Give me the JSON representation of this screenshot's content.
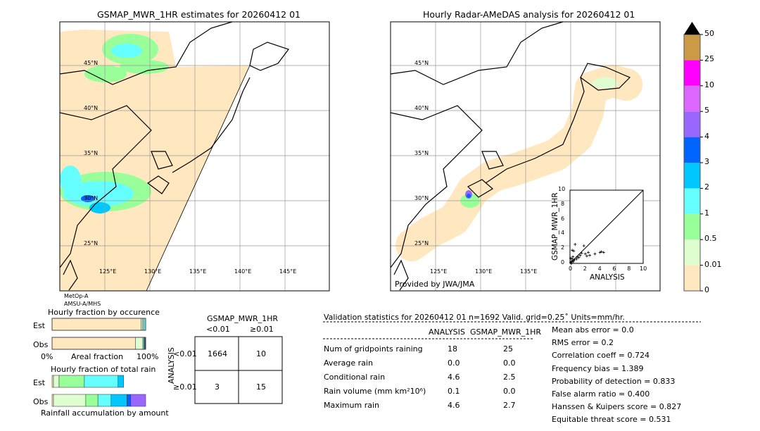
{
  "map_left": {
    "title": "GSMAP_MWR_1HR estimates for 20260412 01",
    "lon_labels": [
      "125°E",
      "130°E",
      "135°E",
      "140°E",
      "145°E"
    ],
    "lat_labels": [
      "45°N",
      "40°N",
      "35°N",
      "30°N",
      "25°N"
    ],
    "sensor_line1": "MetOp-A",
    "sensor_line2": "AMSU-A/MHS"
  },
  "map_right": {
    "title": "Hourly Radar-AMeDAS analysis for 20260412 01",
    "lon_labels": [
      "125°E",
      "130°E",
      "135°E"
    ],
    "lat_labels": [
      "45°N",
      "40°N",
      "35°N",
      "30°N",
      "25°N"
    ],
    "credit": "Provided by JWA/JMA"
  },
  "colorbar": {
    "labels": [
      "0",
      "0.01",
      "0.5",
      "1",
      "2",
      "3",
      "4",
      "5",
      "10",
      "25",
      "50"
    ],
    "colors": [
      "#ffe8c0",
      "#e0ffd0",
      "#99ff99",
      "#66ffff",
      "#00c8ff",
      "#0064ff",
      "#9966ff",
      "#dd66ff",
      "#ff00ff",
      "#cc9944"
    ],
    "extend": "max"
  },
  "chart_data": {
    "type": "scatter",
    "xlabel": "ANALYSIS",
    "ylabel": "GSMAP_MWR_1HR",
    "xlim": [
      0,
      10
    ],
    "ylim": [
      0,
      10
    ],
    "ticks": [
      "0",
      "2",
      "4",
      "6",
      "8",
      "10"
    ],
    "points": [
      [
        0.1,
        0.1
      ],
      [
        0.2,
        0.3
      ],
      [
        0.3,
        0.6
      ],
      [
        0.4,
        0.9
      ],
      [
        0.5,
        0.4
      ],
      [
        0.3,
        1.8
      ],
      [
        0.5,
        1.7
      ],
      [
        0.7,
        2.6
      ],
      [
        0.9,
        0.6
      ],
      [
        1.2,
        0.8
      ],
      [
        1.4,
        1.1
      ],
      [
        1.6,
        1.4
      ],
      [
        1.9,
        2.4
      ],
      [
        2.1,
        1.3
      ],
      [
        2.3,
        1.0
      ],
      [
        2.5,
        1.5
      ],
      [
        2.7,
        1.1
      ],
      [
        3.4,
        1.3
      ],
      [
        4.1,
        1.5
      ],
      [
        4.3,
        1.6
      ],
      [
        4.6,
        1.5
      ],
      [
        0.2,
        0.0
      ],
      [
        0.4,
        0.2
      ],
      [
        0.6,
        0.5
      ],
      [
        0.1,
        0.7
      ],
      [
        1.0,
        0.9
      ]
    ]
  },
  "occurrence": {
    "title": "Hourly fraction by occurence",
    "est_label": "Est",
    "obs_label": "Obs",
    "axis_left": "0%",
    "axis_mid": "Areal fraction",
    "axis_right": "100%",
    "est": [
      {
        "color": "#ffe8c0",
        "pct": 95
      },
      {
        "color": "#e0ffd0",
        "pct": 1.5
      },
      {
        "color": "#99ff99",
        "pct": 1.5
      },
      {
        "color": "#66ffff",
        "pct": 2
      }
    ],
    "obs": [
      {
        "color": "#ffe8c0",
        "pct": 89
      },
      {
        "color": "#e0ffd0",
        "pct": 8
      },
      {
        "color": "#99ff99",
        "pct": 1
      },
      {
        "color": "#00c8ff",
        "pct": 1
      },
      {
        "color": "#333333",
        "pct": 1
      }
    ]
  },
  "rain": {
    "title": "Hourly fraction of total rain",
    "est_label": "Est",
    "obs_label": "Obs",
    "footer": "Rainfall accumulation by amount",
    "est": [
      {
        "color": "#ffe8c0",
        "pct": 1.5
      },
      {
        "color": "#e0ffd0",
        "pct": 6
      },
      {
        "color": "#99ff99",
        "pct": 27
      },
      {
        "color": "#66ffff",
        "pct": 36
      },
      {
        "color": "#00c8ff",
        "pct": 6
      }
    ],
    "obs": [
      {
        "color": "#ffe8c0",
        "pct": 1.5
      },
      {
        "color": "#e0ffd0",
        "pct": 34.5
      },
      {
        "color": "#99ff99",
        "pct": 13
      },
      {
        "color": "#66ffff",
        "pct": 14
      },
      {
        "color": "#00c8ff",
        "pct": 17
      },
      {
        "color": "#0064ff",
        "pct": 4
      },
      {
        "color": "#9966ff",
        "pct": 16
      }
    ]
  },
  "contingency": {
    "title": "GSMAP_MWR_1HR",
    "col1": "<0.01",
    "col2": "≥0.01",
    "row_axis": "ANALYSIS",
    "row1": "<0.01",
    "row2": "≥0.01",
    "cells": [
      "1664",
      "10",
      "3",
      "15"
    ]
  },
  "stats": {
    "header": "Validation statistics for 20260412 01  n=1692 Valid. grid=0.25˚ Units=mm/hr.",
    "col_analysis": "ANALYSIS",
    "col_gsmap": "GSMAP_MWR_1HR",
    "rows": [
      {
        "label": "Num of gridpoints raining",
        "a": "18",
        "g": "25"
      },
      {
        "label": "Average rain",
        "a": "0.0",
        "g": "0.0"
      },
      {
        "label": "Conditional rain",
        "a": "4.6",
        "g": "2.5"
      },
      {
        "label": "Rain volume (mm km²10⁶)",
        "a": "0.1",
        "g": "0.0"
      },
      {
        "label": "Maximum rain",
        "a": "4.6",
        "g": "2.7"
      }
    ],
    "scores": [
      "Mean abs error =    0.0",
      "RMS error =    0.2",
      "Correlation coeff =  0.724",
      "Frequency bias =  1.389",
      "Probability of detection =  0.833",
      "False alarm ratio =  0.400",
      "Hanssen & Kuipers score =  0.827",
      "Equitable threat score =  0.531"
    ]
  }
}
